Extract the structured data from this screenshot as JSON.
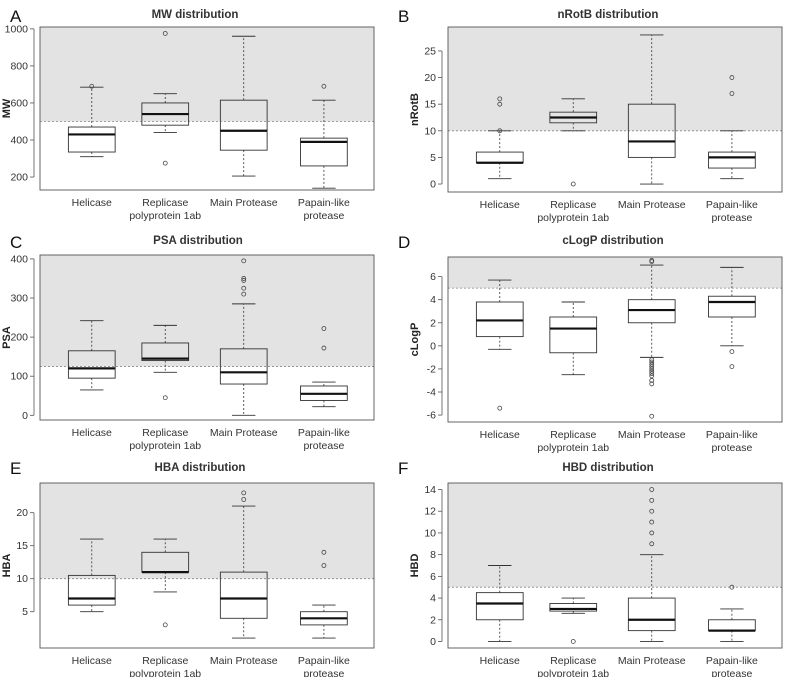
{
  "chart_data": [
    {
      "panel": "A",
      "type": "boxplot",
      "title": "MW distribution",
      "ylabel": "MW",
      "categories": [
        "Helicase",
        "Replicase\npolyprotein 1ab",
        "Main Protease",
        "Papain-like\nprotease"
      ],
      "ylim": [
        130,
        1010
      ],
      "yticks": [
        200,
        400,
        600,
        800,
        1000
      ],
      "threshold": 500,
      "boxes": [
        {
          "whislo": 310,
          "q1": 335,
          "med": 430,
          "q3": 470,
          "whishi": 685,
          "outliers": [
            690
          ]
        },
        {
          "whislo": 440,
          "q1": 480,
          "med": 540,
          "q3": 600,
          "whishi": 650,
          "outliers": [
            275,
            975
          ]
        },
        {
          "whislo": 205,
          "q1": 345,
          "med": 450,
          "q3": 615,
          "whishi": 960,
          "outliers": []
        },
        {
          "whislo": 140,
          "q1": 260,
          "med": 390,
          "q3": 410,
          "whishi": 615,
          "outliers": [
            690
          ]
        }
      ]
    },
    {
      "panel": "B",
      "type": "boxplot",
      "title": "nRotB distribution",
      "ylabel": "nRotB",
      "categories": [
        "Helicase",
        "Replicase\npolyprotein 1ab",
        "Main Protease",
        "Papain-like\nprotease"
      ],
      "ylim": [
        -1.5,
        29.5
      ],
      "yticks": [
        0,
        5,
        10,
        15,
        20,
        25
      ],
      "threshold": 10,
      "boxes": [
        {
          "whislo": 1,
          "q1": 4,
          "med": 4,
          "q3": 6,
          "whishi": 10,
          "outliers": [
            10,
            15,
            16
          ]
        },
        {
          "whislo": 10,
          "q1": 11.5,
          "med": 12.5,
          "q3": 13.5,
          "whishi": 16,
          "outliers": [
            0
          ]
        },
        {
          "whislo": 0,
          "q1": 5,
          "med": 8,
          "q3": 15,
          "whishi": 28,
          "outliers": []
        },
        {
          "whislo": 1,
          "q1": 3,
          "med": 5,
          "q3": 6,
          "whishi": 10,
          "outliers": [
            17,
            20
          ]
        }
      ]
    },
    {
      "panel": "C",
      "type": "boxplot",
      "title": "PSA distribution",
      "ylabel": "PSA",
      "categories": [
        "Helicase",
        "Replicase\npolyprotein 1ab",
        "Main Protease",
        "Papain-like\nprotease"
      ],
      "ylim": [
        -12,
        410
      ],
      "yticks": [
        0,
        100,
        200,
        300,
        400
      ],
      "threshold": 125,
      "boxes": [
        {
          "whislo": 65,
          "q1": 95,
          "med": 120,
          "q3": 165,
          "whishi": 242,
          "outliers": []
        },
        {
          "whislo": 110,
          "q1": 140,
          "med": 145,
          "q3": 185,
          "whishi": 230,
          "outliers": [
            45
          ]
        },
        {
          "whislo": 0,
          "q1": 80,
          "med": 110,
          "q3": 170,
          "whishi": 285,
          "outliers": [
            310,
            325,
            345,
            350,
            395
          ]
        },
        {
          "whislo": 22,
          "q1": 38,
          "med": 55,
          "q3": 75,
          "whishi": 85,
          "outliers": [
            172,
            222
          ]
        }
      ]
    },
    {
      "panel": "D",
      "type": "boxplot",
      "title": "cLogP distribution",
      "ylabel": "cLogP",
      "categories": [
        "Helicase",
        "Replicase\npolyprotein 1ab",
        "Main Protease",
        "Papain-like\nprotease"
      ],
      "ylim": [
        -6.6,
        7.7
      ],
      "yticks": [
        -6,
        -4,
        -2,
        0,
        2,
        4,
        6
      ],
      "threshold": 5,
      "boxes": [
        {
          "whislo": -0.3,
          "q1": 0.8,
          "med": 2.2,
          "q3": 3.8,
          "whishi": 5.7,
          "outliers": [
            -5.4
          ]
        },
        {
          "whislo": -2.5,
          "q1": -0.6,
          "med": 1.5,
          "q3": 2.5,
          "whishi": 3.8,
          "outliers": []
        },
        {
          "whislo": -1,
          "q1": 2,
          "med": 3.1,
          "q3": 4,
          "whishi": 7,
          "outliers": [
            7.4,
            7.3,
            -1.2,
            -1.4,
            -1.6,
            -1.8,
            -2.0,
            -2.2,
            -2.4,
            -2.6,
            -3.0,
            -3.3,
            -6.1
          ]
        },
        {
          "whislo": 0,
          "q1": 2.5,
          "med": 3.8,
          "q3": 4.3,
          "whishi": 6.8,
          "outliers": [
            -0.5,
            -1.8
          ]
        }
      ]
    },
    {
      "panel": "E",
      "type": "boxplot",
      "title": "HBA distribution",
      "ylabel": "HBA",
      "categories": [
        "Helicase",
        "Replicase\npolyprotein 1ab",
        "Main Protease",
        "Papain-like\nprotease"
      ],
      "ylim": [
        -0.5,
        24.5
      ],
      "yticks": [
        5,
        10,
        15,
        20
      ],
      "threshold": 10,
      "boxes": [
        {
          "whislo": 5,
          "q1": 6,
          "med": 7,
          "q3": 10.5,
          "whishi": 16,
          "outliers": []
        },
        {
          "whislo": 8,
          "q1": 11,
          "med": 11,
          "q3": 14,
          "whishi": 16,
          "outliers": [
            3
          ]
        },
        {
          "whislo": 1,
          "q1": 4,
          "med": 7,
          "q3": 11,
          "whishi": 21,
          "outliers": [
            22,
            23
          ]
        },
        {
          "whislo": 1,
          "q1": 3,
          "med": 4,
          "q3": 5,
          "whishi": 6,
          "outliers": [
            12,
            14
          ]
        }
      ]
    },
    {
      "panel": "F",
      "type": "boxplot",
      "title": "HBD distribution",
      "ylabel": "HBD",
      "categories": [
        "Helicase",
        "Replicase\npolyprotein 1ab",
        "Main Protease",
        "Papain-like\nprotease"
      ],
      "ylim": [
        -0.6,
        14.6
      ],
      "yticks": [
        0,
        2,
        4,
        6,
        8,
        10,
        12,
        14
      ],
      "threshold": 5,
      "boxes": [
        {
          "whislo": 0,
          "q1": 2,
          "med": 3.5,
          "q3": 4.5,
          "whishi": 7,
          "outliers": []
        },
        {
          "whislo": 2.6,
          "q1": 2.8,
          "med": 3,
          "q3": 3.5,
          "whishi": 4,
          "outliers": [
            0
          ]
        },
        {
          "whislo": 0,
          "q1": 1,
          "med": 2,
          "q3": 4,
          "whishi": 8,
          "outliers": [
            9,
            10,
            11,
            12,
            13,
            14
          ]
        },
        {
          "whislo": 0,
          "q1": 1,
          "med": 1,
          "q3": 2,
          "whishi": 3,
          "outliers": [
            5
          ]
        }
      ]
    }
  ]
}
